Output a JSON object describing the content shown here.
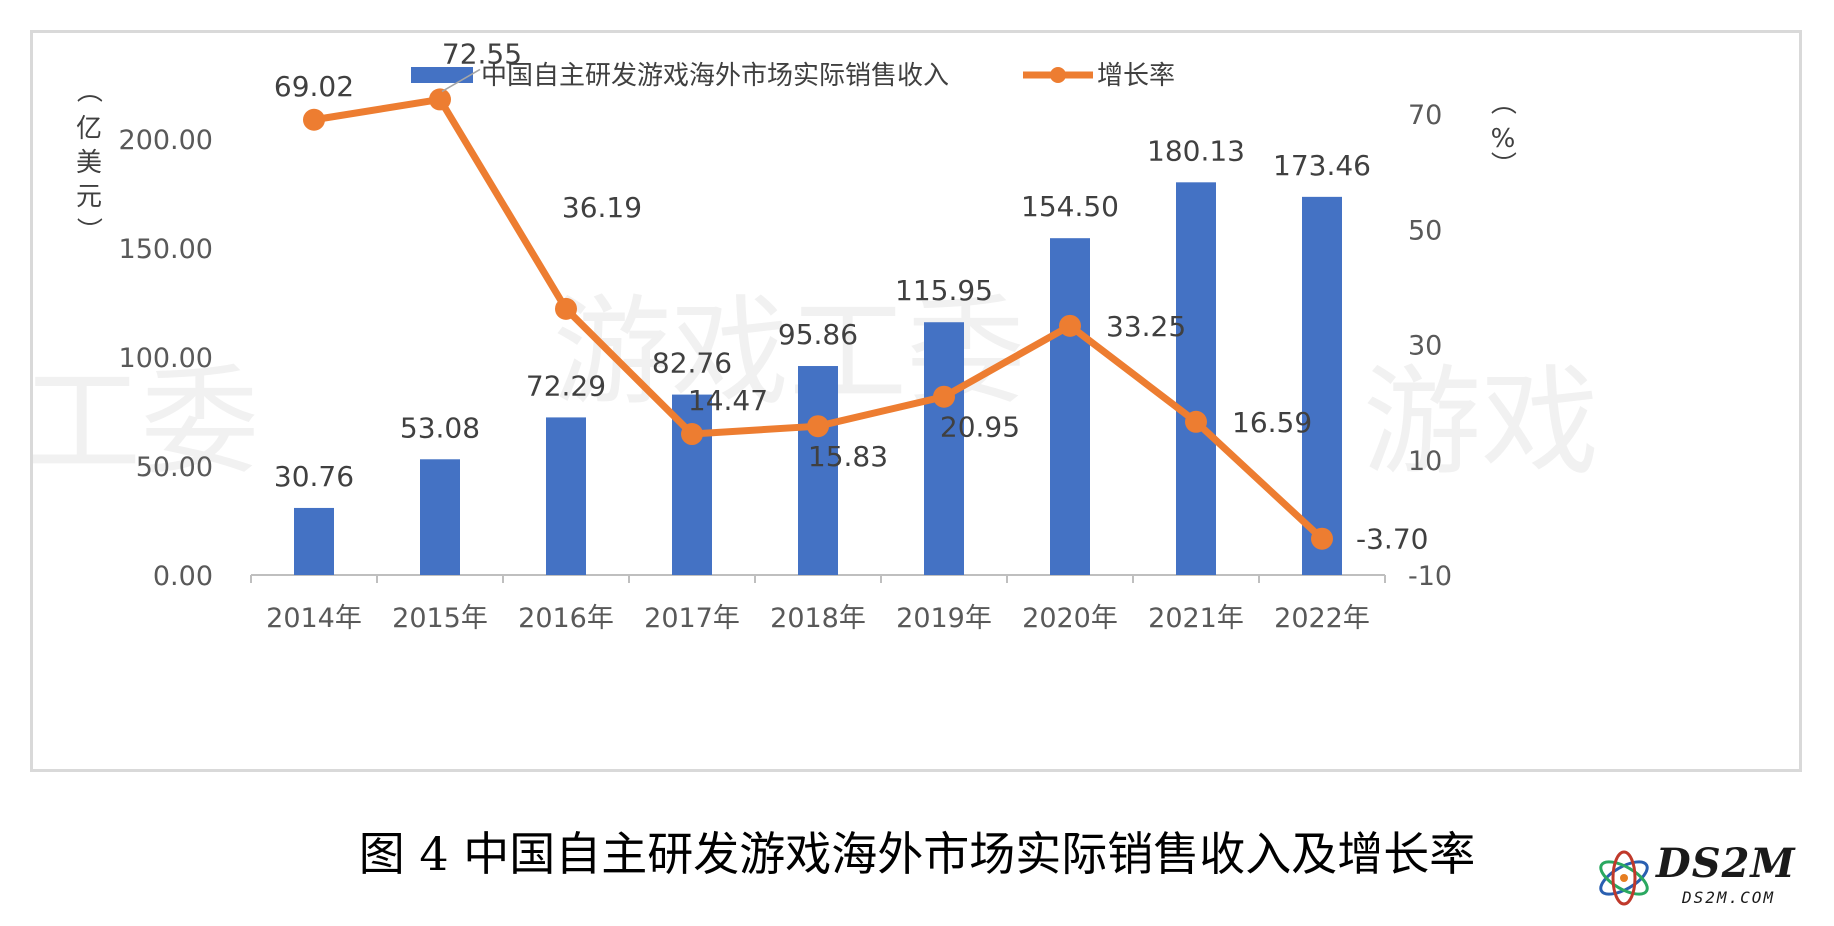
{
  "chart_data": {
    "type": "bar",
    "categories": [
      "2014年",
      "2015年",
      "2016年",
      "2017年",
      "2018年",
      "2019年",
      "2020年",
      "2021年",
      "2022年"
    ],
    "series": [
      {
        "name": "中国自主研发游戏海外市场实际销售收入",
        "type": "bar",
        "axis": "left",
        "values": [
          30.76,
          53.08,
          72.29,
          82.76,
          95.86,
          115.95,
          154.5,
          180.13,
          173.46
        ],
        "labels": [
          "30.76",
          "53.08",
          "72.29",
          "82.76",
          "95.86",
          "115.95",
          "154.50",
          "180.13",
          "173.46"
        ],
        "color": "#4472C4"
      },
      {
        "name": "增长率",
        "type": "line",
        "axis": "right",
        "values": [
          69.02,
          72.55,
          36.19,
          14.47,
          15.83,
          20.95,
          33.25,
          16.59,
          -3.7
        ],
        "labels": [
          "69.02",
          "72.55",
          "36.19",
          "14.47",
          "15.83",
          "20.95",
          "33.25",
          "16.59",
          "-3.70"
        ],
        "color": "#ED7D31"
      }
    ],
    "ylim_left": [
      0,
      200
    ],
    "yticks_left": [
      "0.00",
      "50.00",
      "100.00",
      "150.00",
      "200.00"
    ],
    "ylim_right": [
      -10,
      80
    ],
    "yticks_right": [
      "-10",
      "10",
      "30",
      "50",
      "70"
    ],
    "ylabel_left": "（亿美元）",
    "ylabel_right": "（%）",
    "legend_position": "top",
    "grid": false,
    "watermark": "游戏工委"
  },
  "caption": "图 4 中国自主研发游戏海外市场实际销售收入及增长率",
  "logo": {
    "text": "DS2M",
    "subtext": "DS2M.COM"
  }
}
